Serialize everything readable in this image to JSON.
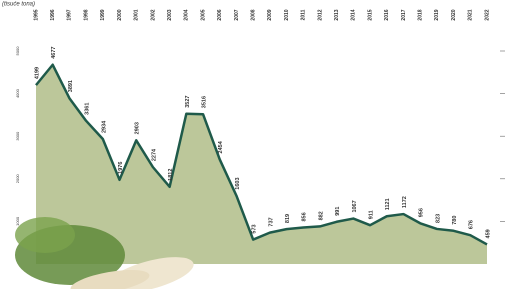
{
  "chart_data": {
    "type": "area",
    "subtitle": "(tisuće tona)",
    "categories": [
      "1995",
      "1996",
      "1997",
      "1998",
      "1999",
      "2000",
      "2001",
      "2002",
      "2003",
      "2004",
      "2005",
      "2006",
      "2007",
      "2008",
      "2009",
      "2010",
      "2011",
      "2012",
      "2013",
      "2014",
      "2015",
      "2016",
      "2017",
      "2018",
      "2019",
      "2020",
      "2021",
      "2022"
    ],
    "series": [
      {
        "color": "#1f5a4a",
        "fill": "#bcc79a",
        "values": [
          4199,
          4677,
          3891,
          3361,
          2934,
          1976,
          2903,
          2274,
          1812,
          3527,
          3516,
          2454,
          1603,
          573,
          737,
          819,
          856,
          882,
          991,
          1067,
          911,
          1121,
          1172,
          956,
          823,
          780,
          676,
          459
        ]
      }
    ],
    "ylim": [
      0,
      5000
    ],
    "yticks": [
      1000,
      2000,
      3000,
      4000,
      5000
    ]
  }
}
